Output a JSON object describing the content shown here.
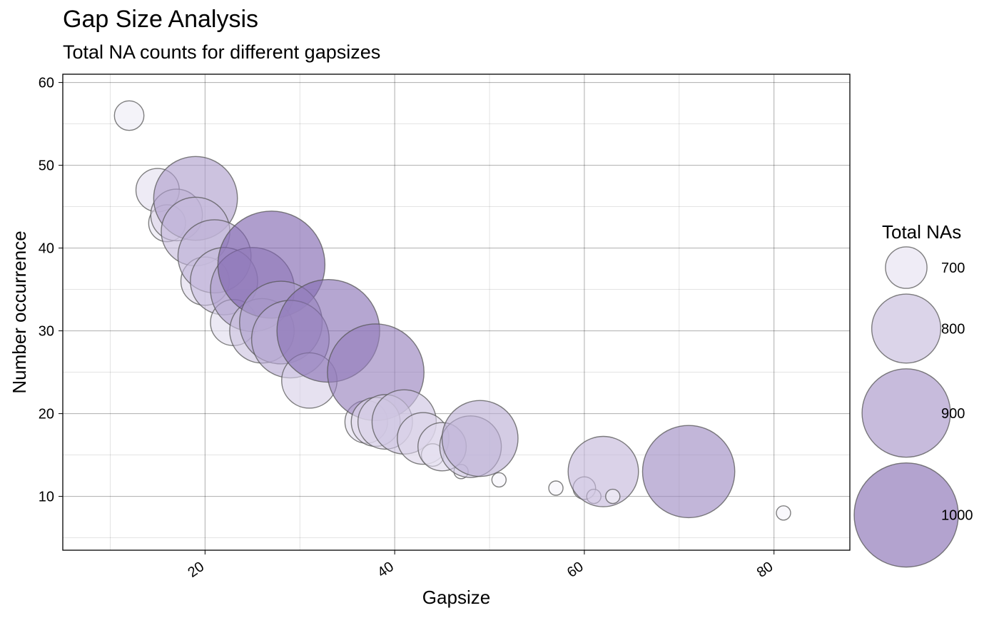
{
  "chart_data": {
    "type": "scatter",
    "title": "Gap Size Analysis",
    "subtitle": "Total NA counts for different gapsizes",
    "xlabel": "Gapsize",
    "ylabel": "Number occurrence",
    "xlim": [
      5,
      88
    ],
    "ylim": [
      3.5,
      61
    ],
    "x_ticks": [
      20,
      40,
      60,
      80
    ],
    "y_ticks": [
      10,
      20,
      30,
      40,
      50,
      60
    ],
    "grid": true,
    "legend": {
      "title": "Total NAs",
      "position": "right",
      "entries": [
        700,
        800,
        900,
        1000
      ]
    },
    "size_range": [
      650,
      1020
    ],
    "colors": {
      "fill_low": "#f5f4fa",
      "fill_high": "#7e63ae",
      "stroke": "#555555"
    },
    "points": [
      {
        "x": 12,
        "y": 56,
        "total": 672
      },
      {
        "x": 15,
        "y": 47,
        "total": 705
      },
      {
        "x": 16,
        "y": 43,
        "total": 688
      },
      {
        "x": 17,
        "y": 44,
        "total": 731
      },
      {
        "x": 19,
        "y": 46,
        "total": 874
      },
      {
        "x": 19,
        "y": 42,
        "total": 798
      },
      {
        "x": 20,
        "y": 36,
        "total": 720
      },
      {
        "x": 21,
        "y": 39,
        "total": 819
      },
      {
        "x": 22,
        "y": 36,
        "total": 792
      },
      {
        "x": 23,
        "y": 31,
        "total": 713
      },
      {
        "x": 25,
        "y": 35,
        "total": 875
      },
      {
        "x": 26,
        "y": 30,
        "total": 780
      },
      {
        "x": 27,
        "y": 38,
        "total": 1026
      },
      {
        "x": 28,
        "y": 31,
        "total": 868
      },
      {
        "x": 29,
        "y": 29,
        "total": 841
      },
      {
        "x": 31,
        "y": 24,
        "total": 744
      },
      {
        "x": 33,
        "y": 30,
        "total": 990
      },
      {
        "x": 37,
        "y": 19,
        "total": 703
      },
      {
        "x": 38,
        "y": 25,
        "total": 950
      },
      {
        "x": 38,
        "y": 19,
        "total": 722
      },
      {
        "x": 39,
        "y": 19,
        "total": 741
      },
      {
        "x": 41,
        "y": 19,
        "total": 779
      },
      {
        "x": 43,
        "y": 17,
        "total": 731
      },
      {
        "x": 44,
        "y": 15,
        "total": 660
      },
      {
        "x": 45,
        "y": 16,
        "total": 720
      },
      {
        "x": 47,
        "y": 13,
        "total": 611
      },
      {
        "x": 48,
        "y": 16,
        "total": 768
      },
      {
        "x": 49,
        "y": 17,
        "total": 833
      },
      {
        "x": 51,
        "y": 12,
        "total": 612
      },
      {
        "x": 57,
        "y": 11,
        "total": 627
      },
      {
        "x": 60,
        "y": 11,
        "total": 660
      },
      {
        "x": 61,
        "y": 10,
        "total": 610
      },
      {
        "x": 62,
        "y": 13,
        "total": 806
      },
      {
        "x": 63,
        "y": 10,
        "total": 630
      },
      {
        "x": 71,
        "y": 13,
        "total": 923
      },
      {
        "x": 81,
        "y": 8,
        "total": 648
      }
    ]
  }
}
